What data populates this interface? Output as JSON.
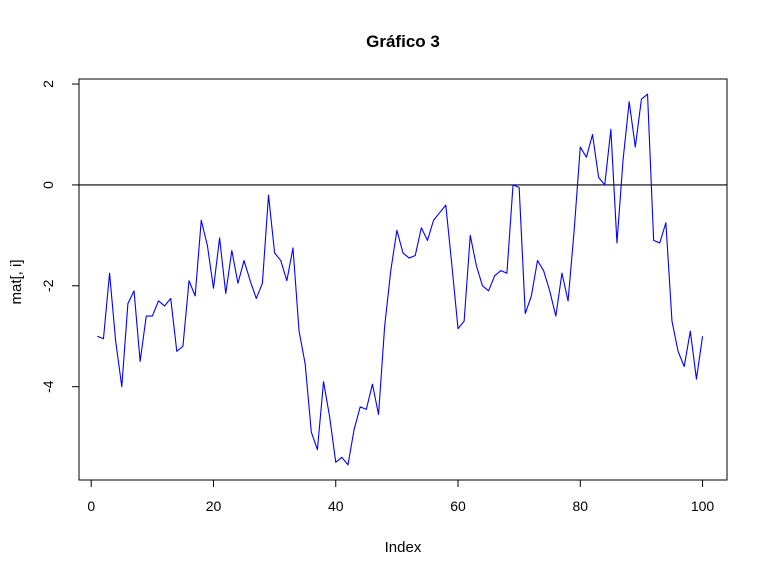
{
  "chart_data": {
    "type": "line",
    "title": "Gráfico 3",
    "xlabel": "Index",
    "ylabel": "mat[, i]",
    "xlim": [
      -2,
      104
    ],
    "ylim": [
      -5.85,
      2.1
    ],
    "x_ticks": [
      0,
      20,
      40,
      60,
      80,
      100
    ],
    "x_tick_labels": [
      "0",
      "20",
      "40",
      "60",
      "80",
      "100"
    ],
    "y_ticks": [
      -4,
      -2,
      0,
      2
    ],
    "y_tick_labels": [
      "-4",
      "-2",
      "0",
      "2"
    ],
    "hline": 0,
    "grid": false,
    "colors": {
      "series": "#0000ff",
      "hline": "#000000",
      "axis": "#000000"
    },
    "series": [
      {
        "x": [
          1,
          2,
          3,
          4,
          5,
          6,
          7,
          8,
          9,
          10,
          11,
          12,
          13,
          14,
          15,
          16,
          17,
          18,
          19,
          20,
          21,
          22,
          23,
          24,
          25,
          26,
          27,
          28,
          29,
          30,
          31,
          32,
          33,
          34,
          35,
          36,
          37,
          38,
          39,
          40,
          41,
          42,
          43,
          44,
          45,
          46,
          47,
          48,
          49,
          50,
          51,
          52,
          53,
          54,
          55,
          56,
          57,
          58,
          59,
          60,
          61,
          62,
          63,
          64,
          65,
          66,
          67,
          68,
          69,
          70,
          71,
          72,
          73,
          74,
          75,
          76,
          77,
          78,
          79,
          80,
          81,
          82,
          83,
          84,
          85,
          86,
          87,
          88,
          89,
          90,
          91,
          92,
          93,
          94,
          95,
          96,
          97,
          98,
          99,
          100
        ],
        "values": [
          -3.0,
          -3.05,
          -1.75,
          -3.1,
          -4.0,
          -2.35,
          -2.1,
          -3.5,
          -2.6,
          -2.6,
          -2.3,
          -2.4,
          -2.25,
          -3.3,
          -3.2,
          -1.9,
          -2.2,
          -0.7,
          -1.2,
          -2.05,
          -1.05,
          -2.15,
          -1.3,
          -1.95,
          -1.5,
          -1.9,
          -2.25,
          -1.95,
          -0.2,
          -1.35,
          -1.5,
          -1.9,
          -1.25,
          -2.9,
          -3.55,
          -4.9,
          -5.25,
          -3.9,
          -4.6,
          -5.5,
          -5.4,
          -5.55,
          -4.85,
          -4.4,
          -4.45,
          -3.95,
          -4.55,
          -2.8,
          -1.7,
          -0.9,
          -1.35,
          -1.45,
          -1.4,
          -0.85,
          -1.1,
          -0.7,
          -0.55,
          -0.4,
          -1.6,
          -2.85,
          -2.7,
          -1.0,
          -1.6,
          -2.0,
          -2.1,
          -1.8,
          -1.7,
          -1.75,
          0.0,
          -0.05,
          -2.55,
          -2.2,
          -1.5,
          -1.7,
          -2.1,
          -2.6,
          -1.75,
          -2.3,
          -0.9,
          0.75,
          0.55,
          1.0,
          0.15,
          0.0,
          1.1,
          -1.15,
          0.5,
          1.65,
          0.75,
          1.7,
          1.8,
          -1.1,
          -1.15,
          -0.75,
          -2.7,
          -3.3,
          -3.6,
          -2.9,
          -3.85,
          -3.0
        ]
      }
    ]
  }
}
